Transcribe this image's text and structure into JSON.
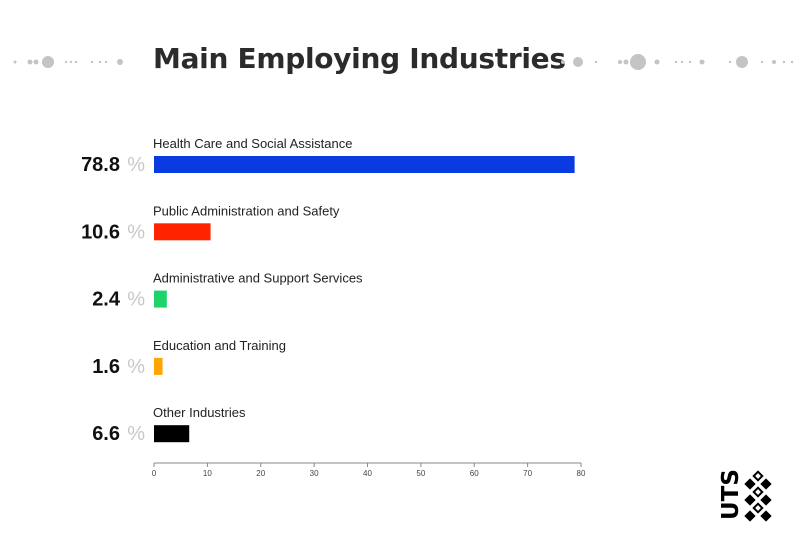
{
  "page": {
    "title": "Main Employing Industries"
  },
  "chart_data": {
    "type": "bar",
    "orientation": "horizontal",
    "title": "Main Employing Industries",
    "categories": [
      "Health Care and Social Assistance",
      "Public Administration and Safety",
      "Administrative and Support Services",
      "Education and Training",
      "Other Industries"
    ],
    "values": [
      78.8,
      10.6,
      2.4,
      1.6,
      6.6
    ],
    "colors": [
      "#0a3be0",
      "#ff2400",
      "#1ed46a",
      "#ffa500",
      "#000000"
    ],
    "value_labels": [
      "78.8",
      "10.6",
      "2.4",
      "1.6",
      "6.6"
    ],
    "unit_symbol": "%",
    "xlim": [
      0,
      80
    ],
    "xticks": [
      0,
      10,
      20,
      30,
      40,
      50,
      60,
      70,
      80
    ],
    "grid": false,
    "legend": "none"
  },
  "logo": {
    "text": "UTS"
  },
  "colors": {
    "title": "#2b2b2b",
    "percent_sign": "#c8c8c8",
    "axis": "#888888",
    "decoration": "#c4c4c4"
  }
}
